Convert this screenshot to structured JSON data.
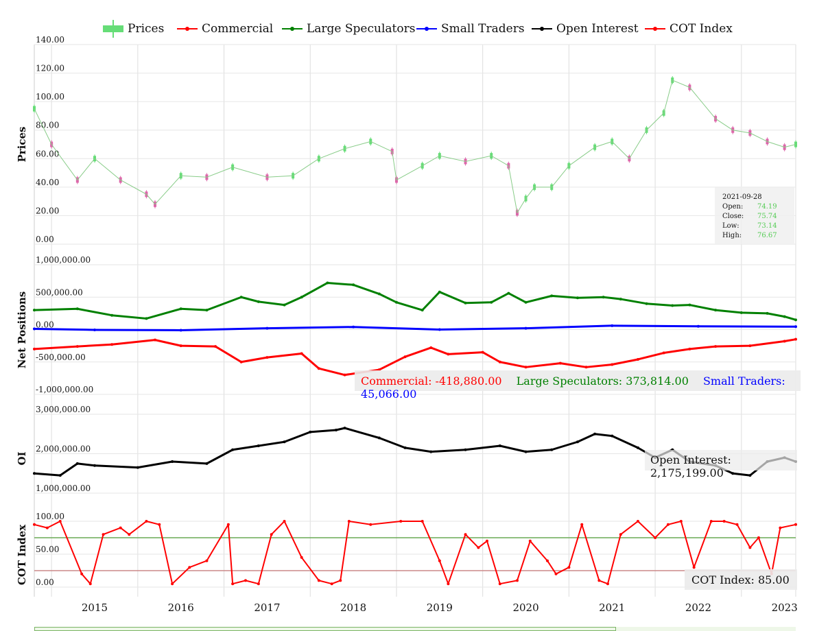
{
  "legend": [
    {
      "name": "Prices",
      "color": "#66dd77",
      "kind": "bar"
    },
    {
      "name": "Commercial",
      "color": "#ff0000",
      "kind": "line"
    },
    {
      "name": "Large Speculators",
      "color": "#008000",
      "kind": "line"
    },
    {
      "name": "Small Traders",
      "color": "#0000ff",
      "kind": "line"
    },
    {
      "name": "Open Interest",
      "color": "#000000",
      "kind": "line"
    },
    {
      "name": "COT Index",
      "color": "#ff0000",
      "kind": "line"
    }
  ],
  "x_ticks": [
    "2015",
    "2016",
    "2017",
    "2018",
    "2019",
    "2020",
    "2021",
    "2022",
    "2023"
  ],
  "x_tick_years": [
    2015,
    2016,
    2017,
    2018,
    2019,
    2020,
    2021,
    2022,
    2023
  ],
  "x_range": [
    2014.3,
    2023.13
  ],
  "panels": {
    "prices": {
      "ylabel": "Prices",
      "yticks": [
        "0.00",
        "20.00",
        "40.00",
        "60.00",
        "80.00",
        "100.00",
        "120.00",
        "140.00"
      ],
      "ylim": [
        0,
        140
      ]
    },
    "net": {
      "ylabel": "Net Positions",
      "yticks": [
        "-1,000,000.00",
        "-500,000.00",
        "0.00",
        "500,000.00",
        "1,000,000.00"
      ],
      "ylim": [
        -1000000,
        1000000
      ]
    },
    "oi": {
      "ylabel": "OI",
      "yticks": [
        "1,000,000.00",
        "2,000,000.00",
        "3,000,000.00"
      ],
      "ylim": [
        1000000,
        3000000
      ]
    },
    "cot": {
      "ylabel": "COT Index",
      "yticks": [
        "0.00",
        "50.00",
        "100.00"
      ],
      "ylim": [
        0,
        100
      ],
      "upper_line": 75,
      "lower_line": 25,
      "upper_color": "#6aaa55",
      "lower_color": "#cc8888"
    }
  },
  "tooltip": {
    "date": "2021-09-28",
    "rows": [
      {
        "label": "Open:",
        "value": "74.19"
      },
      {
        "label": "Close:",
        "value": "75.74"
      },
      {
        "label": "Low:",
        "value": "73.14"
      },
      {
        "label": "High:",
        "value": "76.67"
      }
    ]
  },
  "readouts": {
    "commercial": "Commercial: -418,880.00",
    "large": "Large Speculators: 373,814.00",
    "small": "Small Traders: 45,066.00",
    "oi": "Open Interest: 2,175,199.00",
    "cot": "COT Index: 85.00"
  },
  "chart_data": [
    {
      "type": "line",
      "ylabel": "Prices",
      "series": [
        {
          "name": "Prices",
          "x": [
            2014.3,
            2014.5,
            2014.8,
            2015.0,
            2015.3,
            2015.6,
            2015.7,
            2016.0,
            2016.3,
            2016.6,
            2017.0,
            2017.3,
            2017.6,
            2017.9,
            2018.2,
            2018.45,
            2018.5,
            2018.8,
            2019.0,
            2019.3,
            2019.6,
            2019.8,
            2019.9,
            2020.0,
            2020.1,
            2020.3,
            2020.5,
            2020.8,
            2021.0,
            2021.2,
            2021.4,
            2021.6,
            2021.7,
            2021.9,
            2022.2,
            2022.4,
            2022.6,
            2022.8,
            2023.0,
            2023.13
          ],
          "values": [
            95,
            70,
            45,
            60,
            45,
            35,
            28,
            48,
            47,
            54,
            47,
            48,
            60,
            67,
            72,
            65,
            45,
            55,
            62,
            58,
            62,
            55,
            22,
            32,
            40,
            40,
            55,
            68,
            72,
            60,
            80,
            92,
            115,
            110,
            88,
            80,
            78,
            72,
            68,
            70
          ]
        }
      ],
      "ylim": [
        0,
        140
      ]
    },
    {
      "type": "line",
      "ylabel": "Net Positions",
      "series": [
        {
          "name": "Large Speculators",
          "x": [
            2014.3,
            2014.8,
            2015.2,
            2015.6,
            2016.0,
            2016.3,
            2016.7,
            2016.9,
            2017.2,
            2017.4,
            2017.7,
            2018.0,
            2018.3,
            2018.5,
            2018.8,
            2019.0,
            2019.3,
            2019.6,
            2019.8,
            2020.0,
            2020.3,
            2020.6,
            2020.9,
            2021.1,
            2021.4,
            2021.7,
            2021.9,
            2022.2,
            2022.5,
            2022.8,
            2023.0,
            2023.13
          ],
          "values": [
            300000,
            320000,
            220000,
            170000,
            320000,
            300000,
            500000,
            430000,
            380000,
            500000,
            720000,
            690000,
            550000,
            420000,
            300000,
            580000,
            410000,
            420000,
            560000,
            420000,
            520000,
            490000,
            500000,
            470000,
            400000,
            370000,
            380000,
            300000,
            260000,
            250000,
            200000,
            150000
          ]
        },
        {
          "name": "Small Traders",
          "x": [
            2014.3,
            2015.0,
            2016.0,
            2017.0,
            2018.0,
            2019.0,
            2020.0,
            2021.0,
            2022.0,
            2023.13
          ],
          "values": [
            10000,
            -5000,
            -10000,
            20000,
            40000,
            0,
            20000,
            60000,
            50000,
            45000
          ]
        },
        {
          "name": "Commercial",
          "x": [
            2014.3,
            2014.8,
            2015.2,
            2015.7,
            2016.0,
            2016.4,
            2016.7,
            2017.0,
            2017.4,
            2017.6,
            2017.9,
            2018.3,
            2018.6,
            2018.9,
            2019.1,
            2019.5,
            2019.7,
            2020.0,
            2020.4,
            2020.7,
            2021.0,
            2021.3,
            2021.6,
            2021.9,
            2022.2,
            2022.6,
            2023.0,
            2023.13
          ],
          "values": [
            -300000,
            -260000,
            -230000,
            -160000,
            -250000,
            -260000,
            -500000,
            -430000,
            -370000,
            -600000,
            -700000,
            -620000,
            -420000,
            -280000,
            -380000,
            -350000,
            -500000,
            -580000,
            -520000,
            -580000,
            -540000,
            -460000,
            -360000,
            -300000,
            -260000,
            -250000,
            -180000,
            -150000
          ]
        }
      ],
      "ylim": [
        -1000000,
        1000000
      ]
    },
    {
      "type": "line",
      "ylabel": "OI",
      "series": [
        {
          "name": "Open Interest",
          "x": [
            2014.3,
            2014.6,
            2014.8,
            2015.0,
            2015.5,
            2015.9,
            2016.3,
            2016.6,
            2016.9,
            2017.2,
            2017.5,
            2017.8,
            2017.9,
            2018.3,
            2018.6,
            2018.9,
            2019.3,
            2019.7,
            2020.0,
            2020.3,
            2020.6,
            2020.8,
            2021.0,
            2021.3,
            2021.5,
            2021.7,
            2021.9,
            2022.2,
            2022.4,
            2022.6,
            2022.8,
            2023.0,
            2023.13
          ],
          "values": [
            1500000,
            1450000,
            1750000,
            1700000,
            1650000,
            1800000,
            1750000,
            2100000,
            2200000,
            2300000,
            2550000,
            2600000,
            2650000,
            2400000,
            2150000,
            2050000,
            2100000,
            2200000,
            2050000,
            2100000,
            2300000,
            2500000,
            2450000,
            2150000,
            1900000,
            2100000,
            1800000,
            1700000,
            1500000,
            1450000,
            1800000,
            1900000,
            1800000
          ]
        }
      ],
      "ylim": [
        1000000,
        3000000
      ]
    },
    {
      "type": "line",
      "ylabel": "COT Index",
      "series": [
        {
          "name": "COT Index",
          "x": [
            2014.3,
            2014.45,
            2014.6,
            2014.85,
            2014.95,
            2015.1,
            2015.3,
            2015.4,
            2015.6,
            2015.75,
            2015.9,
            2016.1,
            2016.3,
            2016.55,
            2016.6,
            2016.75,
            2016.9,
            2017.05,
            2017.2,
            2017.4,
            2017.6,
            2017.75,
            2017.85,
            2017.95,
            2018.2,
            2018.55,
            2018.8,
            2019.0,
            2019.1,
            2019.3,
            2019.45,
            2019.55,
            2019.7,
            2019.9,
            2020.05,
            2020.25,
            2020.35,
            2020.5,
            2020.65,
            2020.85,
            2020.95,
            2021.1,
            2021.3,
            2021.5,
            2021.65,
            2021.8,
            2021.95,
            2022.15,
            2022.3,
            2022.45,
            2022.6,
            2022.7,
            2022.85,
            2022.95,
            2023.13
          ],
          "values": [
            95,
            90,
            100,
            20,
            5,
            80,
            90,
            80,
            100,
            95,
            5,
            30,
            40,
            95,
            5,
            10,
            5,
            80,
            100,
            45,
            10,
            5,
            10,
            100,
            95,
            100,
            100,
            40,
            5,
            80,
            60,
            70,
            5,
            10,
            70,
            40,
            20,
            30,
            95,
            10,
            5,
            80,
            100,
            75,
            95,
            100,
            30,
            100,
            100,
            95,
            60,
            75,
            20,
            90,
            95
          ]
        }
      ],
      "ylim": [
        0,
        100
      ]
    }
  ]
}
